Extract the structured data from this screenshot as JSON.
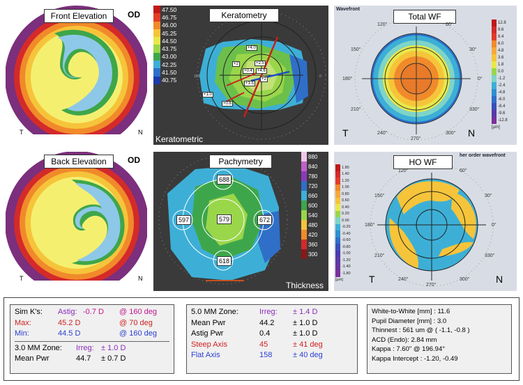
{
  "panels": {
    "front_elevation": {
      "title": "Front Elevation",
      "eye": "OD",
      "left_label": "T",
      "right_label": "N"
    },
    "back_elevation": {
      "title": "Back Elevation",
      "eye": "OD",
      "left_label": "T",
      "right_label": "N"
    },
    "keratometry": {
      "title": "Keratometry",
      "caption": "Keratometric",
      "scale": [
        "47.50",
        "46.75",
        "46.00",
        "45.25",
        "44.50",
        "43.75",
        "43.00",
        "42.25",
        "41.50",
        "40.75"
      ],
      "markers": [
        "+4.0",
        "+2",
        "+0.4",
        "+2.5",
        "+4.6",
        "+1.5",
        "+2",
        "+1.0",
        "+0.6"
      ]
    },
    "pachymetry": {
      "title": "Pachymetry",
      "caption": "Thickness",
      "scale": [
        "880",
        "840",
        "780",
        "720",
        "660",
        "600",
        "540",
        "480",
        "420",
        "360",
        "300"
      ],
      "readings": {
        "top": "688",
        "center": "579",
        "left": "597",
        "right": "672",
        "bottom": "618"
      }
    },
    "total_wf": {
      "title": "Total WF",
      "header": "Wavefront",
      "scale": [
        "12.8",
        "9.6",
        "8.4",
        "6.0",
        "4.8",
        "3.6",
        "1.8",
        "0.0",
        "-1.2",
        "-2.4",
        "-4.8",
        "-6.0",
        "-8.4",
        "-9.6",
        "-12.8"
      ],
      "unit": "[µm]",
      "angles": [
        "120°",
        "60°",
        "150°",
        "30°",
        "180°",
        "0°",
        "210°",
        "330°",
        "240°",
        "300°",
        "270°"
      ],
      "left_label": "T",
      "right_label": "N"
    },
    "ho_wf": {
      "title": "HO WF",
      "header": "her order wavefront",
      "scale": [
        "1.80",
        "1.40",
        "1.20",
        "1.00",
        "0.80",
        "0.60",
        "0.40",
        "0.20",
        "0.00",
        "-0.20",
        "-0.40",
        "-0.60",
        "-0.80",
        "-1.00",
        "-1.20",
        "-1.40",
        "-1.80"
      ],
      "unit": "[µm]",
      "angles": [
        "120°",
        "60°",
        "150°",
        "30°",
        "180°",
        "0°",
        "210°",
        "330°",
        "240°",
        "300°",
        "270°"
      ],
      "left_label": "T",
      "right_label": "N"
    }
  },
  "sim_k": {
    "astig_label": "Sim K's:",
    "astig_name": "Astig:",
    "astig_val": "-0.7 D",
    "astig_deg": "@ 160 deg",
    "max_label": "Max:",
    "max_val": "45.2 D",
    "max_deg": "@ 70 deg",
    "min_label": "Min:",
    "min_val": "44.5 D",
    "min_deg": "@ 160 deg",
    "zone3_label": "3.0 MM Zone:",
    "zone3_irreg": "Irreg:",
    "zone3_irreg_val": "± 1.0 D",
    "zone3_mean_label": "Mean Pwr",
    "zone3_mean_val": "44.7",
    "zone3_mean_pm": "± 0.7 D"
  },
  "zone5": {
    "label": "5.0 MM Zone:",
    "irreg": "Irreg:",
    "irreg_val": "± 1.4 D",
    "mean_label": "Mean Pwr",
    "mean_val": "44.2",
    "mean_pm": "± 1.0 D",
    "astig_label": "Astig Pwr",
    "astig_val": "0.4",
    "astig_pm": "± 1.0 D",
    "steep_label": "Steep Axis",
    "steep_val": "45",
    "steep_pm": "± 41 deg",
    "flat_label": "Flat Axis",
    "flat_val": "158",
    "flat_pm": "± 40 deg"
  },
  "biometry": {
    "wtw": "White-to-White [mm] : 11.6",
    "pupil": "Pupil Diameter [mm] :  3.0",
    "thinnest": "Thinnest : 561 um @ ( -1.1, -0.8 )",
    "acd": "ACD (Endo): 2.84 mm",
    "kappa": "Kappa : 7.60\" @ 196.94°",
    "kappa_intercept": "Kappa Intercept : -1.20, -0.49"
  }
}
